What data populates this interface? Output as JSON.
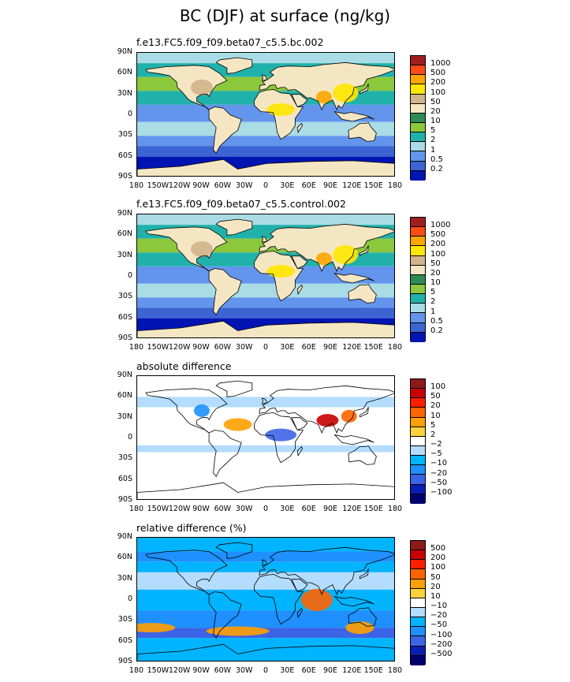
{
  "title": "BC (DJF) at surface (ng/kg)",
  "lat_ticks": [
    "90N",
    "60N",
    "30N",
    "0",
    "30S",
    "60S",
    "90S"
  ],
  "lon_ticks": [
    "180",
    "150W",
    "120W",
    "90W",
    "60W",
    "30W",
    "0",
    "30E",
    "60E",
    "90E",
    "120E",
    "150E",
    "180"
  ],
  "chart_data": [
    {
      "type": "heatmap",
      "title": "f.e13.FC5.f09_f09.beta07_c5.5.bc.002",
      "x_range": [
        "180",
        "180"
      ],
      "y_range": [
        "90S",
        "90N"
      ],
      "colorbar_levels": [
        "1000",
        "500",
        "200",
        "100",
        "50",
        "20",
        "10",
        "5",
        "2",
        "1",
        "0.5",
        "0.2"
      ],
      "colorbar_colors": [
        "#a01e1e",
        "#ff4b14",
        "#ffa500",
        "#ffe600",
        "#d2b48c",
        "#f5e6c3",
        "#2e8b57",
        "#8cc83c",
        "#20b2aa",
        "#aadce6",
        "#6495ed",
        "#3c64d2",
        "#0014b4"
      ]
    },
    {
      "type": "heatmap",
      "title": "f.e13.FC5.f09_f09.beta07_c5.5.control.002",
      "x_range": [
        "180",
        "180"
      ],
      "y_range": [
        "90S",
        "90N"
      ],
      "colorbar_levels": [
        "1000",
        "500",
        "200",
        "100",
        "50",
        "20",
        "10",
        "5",
        "2",
        "1",
        "0.5",
        "0.2"
      ],
      "colorbar_colors": [
        "#a01e1e",
        "#ff4b14",
        "#ffa500",
        "#ffe600",
        "#d2b48c",
        "#f5e6c3",
        "#2e8b57",
        "#8cc83c",
        "#20b2aa",
        "#aadce6",
        "#6495ed",
        "#3c64d2",
        "#0014b4"
      ]
    },
    {
      "type": "heatmap",
      "title": "absolute difference",
      "x_range": [
        "180",
        "180"
      ],
      "y_range": [
        "90S",
        "90N"
      ],
      "colorbar_levels": [
        "100",
        "50",
        "20",
        "10",
        "5",
        "2",
        "−2",
        "−5",
        "−10",
        "−20",
        "−50",
        "−100"
      ],
      "colorbar_colors": [
        "#8b1a1a",
        "#c80000",
        "#ff1e00",
        "#ff6400",
        "#ffa000",
        "#ffd23c",
        "#ffffff",
        "#b4dcff",
        "#00b4ff",
        "#1e90ff",
        "#3c64e6",
        "#0a1eb4",
        "#00006e"
      ]
    },
    {
      "type": "heatmap",
      "title": "relative difference (%)",
      "x_range": [
        "180",
        "180"
      ],
      "y_range": [
        "90S",
        "90N"
      ],
      "colorbar_levels": [
        "500",
        "200",
        "100",
        "50",
        "20",
        "10",
        "−10",
        "−20",
        "−50",
        "−100",
        "−200",
        "−500"
      ],
      "colorbar_colors": [
        "#8b1a1a",
        "#c80000",
        "#ff1e00",
        "#ff6400",
        "#ffa000",
        "#ffd23c",
        "#ffffff",
        "#b4dcff",
        "#00b4ff",
        "#1e90ff",
        "#3c64e6",
        "#0a1eb4",
        "#00006e"
      ]
    }
  ]
}
